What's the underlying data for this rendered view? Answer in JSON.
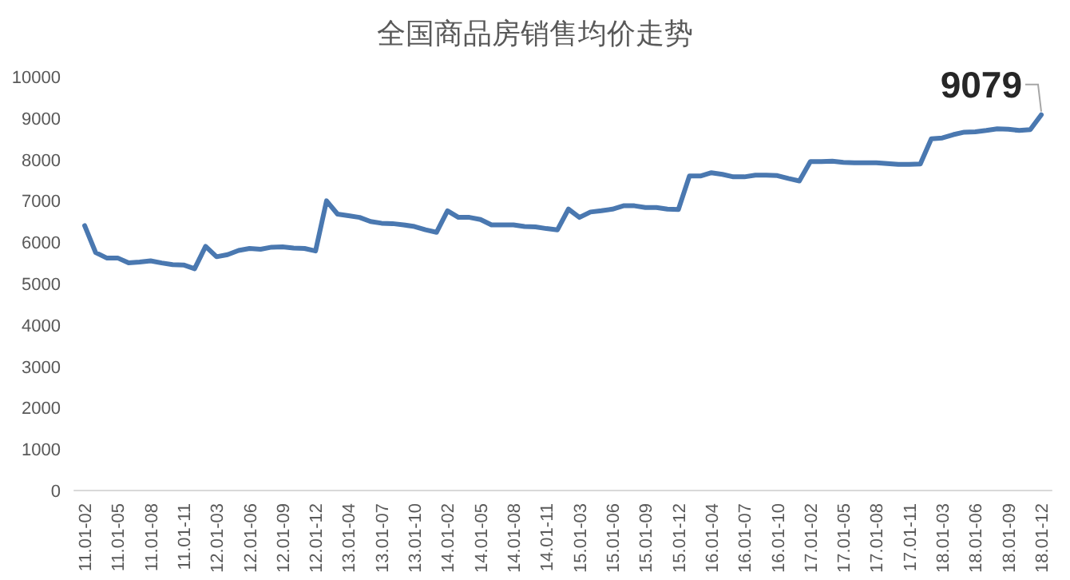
{
  "chart_data": {
    "type": "line",
    "title": "全国商品房销售均价走势",
    "categories": [
      "11.01-02",
      null,
      null,
      "11.01-05",
      null,
      null,
      "11.01-08",
      null,
      null,
      "11.01-11",
      null,
      null,
      "12.01-03",
      null,
      null,
      "12.01-06",
      null,
      null,
      "12.01-09",
      null,
      null,
      "12.01-12",
      null,
      null,
      "13.01-04",
      null,
      null,
      "13.01-07",
      null,
      null,
      "13.01-10",
      null,
      null,
      "14.01-02",
      null,
      null,
      "14.01-05",
      null,
      null,
      "14.01-08",
      null,
      null,
      "14.01-11",
      null,
      null,
      "15.01-03",
      null,
      null,
      "15.01-06",
      null,
      null,
      "15.01-09",
      null,
      null,
      "15.01-12",
      null,
      null,
      "16.01-04",
      null,
      null,
      "16.01-07",
      null,
      null,
      "16.01-10",
      null,
      null,
      "17.01-02",
      null,
      null,
      "17.01-05",
      null,
      null,
      "17.01-08",
      null,
      null,
      "17.01-11",
      null,
      null,
      "18.01-03",
      null,
      null,
      "18.01-06",
      null,
      null,
      "18.01-09",
      null,
      null,
      "18.01-12"
    ],
    "values": [
      6400,
      5750,
      5620,
      5620,
      5500,
      5520,
      5550,
      5500,
      5460,
      5450,
      5360,
      5900,
      5650,
      5700,
      5800,
      5850,
      5830,
      5880,
      5890,
      5860,
      5850,
      5790,
      7000,
      6680,
      6640,
      6600,
      6500,
      6460,
      6450,
      6420,
      6380,
      6300,
      6240,
      6760,
      6600,
      6600,
      6550,
      6420,
      6420,
      6420,
      6380,
      6370,
      6330,
      6300,
      6800,
      6600,
      6730,
      6760,
      6800,
      6880,
      6880,
      6840,
      6840,
      6800,
      6790,
      7600,
      7600,
      7680,
      7640,
      7580,
      7580,
      7620,
      7620,
      7610,
      7540,
      7480,
      7950,
      7950,
      7960,
      7930,
      7920,
      7920,
      7920,
      7900,
      7880,
      7880,
      7890,
      8500,
      8520,
      8600,
      8660,
      8670,
      8700,
      8740,
      8730,
      8700,
      8720,
      9079
    ],
    "color": "#4a78b0",
    "ylim": [
      0,
      10000
    ],
    "yticks": [
      0,
      1000,
      2000,
      3000,
      4000,
      5000,
      6000,
      7000,
      8000,
      9000,
      10000
    ],
    "annotations": [
      {
        "text": "9079",
        "x": "18.01-12",
        "y": 9079
      }
    ]
  }
}
